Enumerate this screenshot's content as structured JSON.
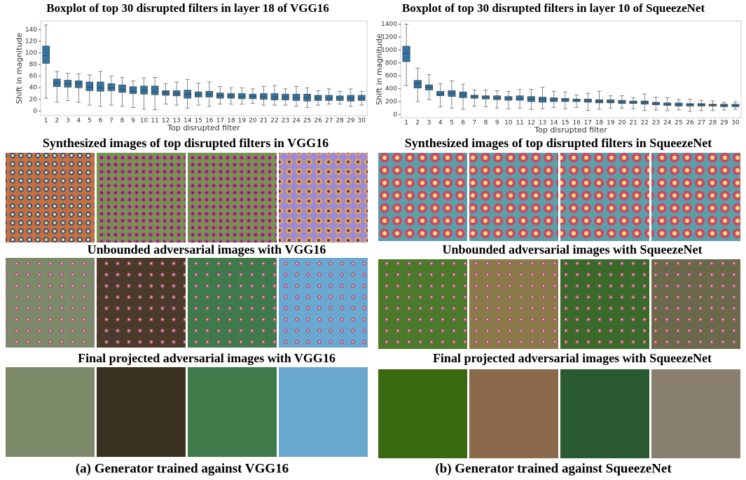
{
  "chart_data": [
    {
      "type": "box",
      "title": "Boxplot of top 30 disrupted filters in layer 18 of VGG16",
      "x_label": "Top disrupted filter",
      "y_label": "Shift in magnitude",
      "color": "#3274a1",
      "categories": [
        "1",
        "2",
        "3",
        "4",
        "5",
        "6",
        "7",
        "8",
        "9",
        "10",
        "11",
        "12",
        "13",
        "14",
        "15",
        "16",
        "17",
        "18",
        "19",
        "20",
        "21",
        "22",
        "23",
        "24",
        "25",
        "26",
        "27",
        "28",
        "29",
        "30"
      ],
      "whisker_low": [
        22,
        15,
        18,
        15,
        10,
        8,
        10,
        8,
        6,
        3,
        2,
        12,
        10,
        5,
        10,
        8,
        12,
        12,
        12,
        13,
        10,
        10,
        10,
        8,
        6,
        10,
        12,
        12,
        8,
        10
      ],
      "q1": [
        82,
        42,
        41,
        40,
        35,
        34,
        35,
        32,
        30,
        29,
        28,
        27,
        26,
        22,
        24,
        24,
        22,
        22,
        21,
        21,
        20,
        19,
        19,
        18,
        17,
        18,
        18,
        18,
        17,
        18
      ],
      "median": [
        95,
        48,
        47,
        47,
        41,
        40,
        40,
        37,
        34,
        35,
        33,
        31,
        30,
        29,
        28,
        29,
        27,
        26,
        25,
        25,
        25,
        24,
        24,
        23,
        23,
        22,
        22,
        22,
        22,
        22
      ],
      "q3": [
        112,
        55,
        53,
        52,
        50,
        50,
        47,
        45,
        42,
        43,
        43,
        35,
        35,
        36,
        33,
        34,
        31,
        30,
        30,
        29,
        30,
        30,
        29,
        29,
        29,
        27,
        27,
        26,
        27,
        27
      ],
      "whisker_high": [
        148,
        68,
        65,
        64,
        62,
        68,
        60,
        58,
        52,
        57,
        58,
        47,
        50,
        54,
        48,
        50,
        42,
        40,
        40,
        38,
        42,
        44,
        38,
        42,
        40,
        35,
        38,
        34,
        38,
        34
      ],
      "ylim": [
        -8,
        155
      ],
      "yticks": [
        0,
        20,
        40,
        60,
        80,
        100,
        120,
        140
      ]
    },
    {
      "type": "box",
      "title": "Boxplot of top 30 disrupted filters in layer 10 of SqueezeNet",
      "x_label": "Top disrupted filter",
      "y_label": "Shift in magnitude",
      "color": "#3274a1",
      "categories": [
        "1",
        "2",
        "3",
        "4",
        "5",
        "6",
        "7",
        "8",
        "9",
        "10",
        "11",
        "12",
        "13",
        "14",
        "15",
        "16",
        "17",
        "18",
        "19",
        "20",
        "21",
        "22",
        "23",
        "24",
        "25",
        "26",
        "27",
        "28",
        "29",
        "30"
      ],
      "whisker_low": [
        450,
        200,
        230,
        120,
        100,
        80,
        130,
        120,
        100,
        90,
        100,
        80,
        90,
        110,
        90,
        110,
        60,
        80,
        100,
        100,
        90,
        60,
        70,
        60,
        70,
        50,
        60,
        60,
        70,
        80
      ],
      "q1": [
        820,
        410,
        380,
        290,
        280,
        260,
        250,
        240,
        230,
        220,
        220,
        200,
        190,
        200,
        200,
        200,
        190,
        180,
        180,
        170,
        170,
        160,
        150,
        140,
        130,
        130,
        130,
        130,
        120,
        120
      ],
      "median": [
        950,
        480,
        420,
        320,
        330,
        310,
        280,
        270,
        260,
        250,
        250,
        240,
        240,
        230,
        230,
        220,
        210,
        200,
        200,
        200,
        190,
        190,
        170,
        160,
        150,
        150,
        150,
        150,
        140,
        140
      ],
      "q3": [
        1060,
        530,
        460,
        360,
        370,
        350,
        300,
        290,
        290,
        280,
        290,
        280,
        270,
        260,
        250,
        240,
        240,
        230,
        230,
        220,
        210,
        210,
        190,
        180,
        180,
        170,
        170,
        160,
        160,
        160
      ],
      "whisker_high": [
        1400,
        720,
        620,
        480,
        520,
        470,
        380,
        380,
        370,
        360,
        390,
        390,
        420,
        360,
        350,
        300,
        330,
        360,
        290,
        290,
        260,
        320,
        270,
        260,
        230,
        240,
        220,
        210,
        190,
        200
      ],
      "ylim": [
        -50,
        1450
      ],
      "yticks": [
        0,
        200,
        400,
        600,
        800,
        1000,
        1200,
        1400
      ]
    }
  ],
  "panels": [
    {
      "headings": [
        "Synthesized images of top disrupted filters in VGG16",
        "Unbounded adversarial images with VGG16",
        "Final projected adversarial images with VGG16"
      ],
      "caption": "(a) Generator trained against VGG16"
    },
    {
      "headings": [
        "Synthesized images of top disrupted filters in SqueezeNet",
        "Unbounded adversarial images with SqueezeNet",
        "Final projected adversarial images with SqueezeNet"
      ],
      "caption": "(b) Generator trained against SqueezeNet"
    }
  ]
}
